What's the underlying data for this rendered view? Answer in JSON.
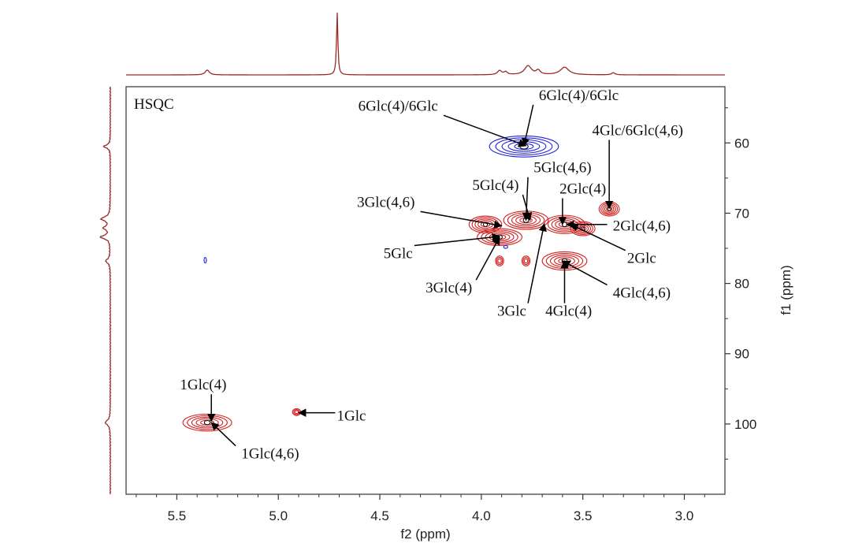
{
  "chart_data": {
    "type": "heatmap",
    "subtype": "2D NMR HSQC contour plot with 1D projections",
    "title": "HSQC",
    "xlabel": "f2 (ppm)",
    "ylabel": "f1 (ppm)",
    "xlim": [
      5.75,
      2.8
    ],
    "ylim": [
      52,
      110
    ],
    "xticks": [
      "5.5",
      "5.0",
      "4.5",
      "4.0",
      "3.5",
      "3.0"
    ],
    "xtick_values": [
      5.5,
      5.0,
      4.5,
      4.0,
      3.5,
      3.0
    ],
    "yticks": [
      "60",
      "70",
      "80",
      "90",
      "100"
    ],
    "ytick_values": [
      60,
      70,
      80,
      90,
      100
    ],
    "colors": {
      "positive": "#d42020",
      "negative": "#2222dd",
      "projection": "#9b2a2a",
      "core": "#111111"
    },
    "peaks": [
      {
        "name": "6Glc-CH2",
        "x": 3.79,
        "y": 60.5,
        "rx": 0.17,
        "ry": 1.5,
        "phase": "negative"
      },
      {
        "name": "3Glc(4,6)/5Glc(4)",
        "x": 3.78,
        "y": 71.0,
        "rx": 0.11,
        "ry": 1.3,
        "phase": "positive"
      },
      {
        "name": "2Glc(4)",
        "x": 3.59,
        "y": 71.6,
        "rx": 0.1,
        "ry": 1.3,
        "phase": "positive"
      },
      {
        "name": "right shoulder",
        "x": 3.5,
        "y": 72.2,
        "rx": 0.06,
        "ry": 1.0,
        "phase": "positive"
      },
      {
        "name": "left cluster",
        "x": 3.98,
        "y": 71.6,
        "rx": 0.08,
        "ry": 1.2,
        "phase": "positive"
      },
      {
        "name": "3Glc(4)",
        "x": 3.91,
        "y": 73.4,
        "rx": 0.11,
        "ry": 1.2,
        "phase": "positive"
      },
      {
        "name": "4Glc/6Glc(4,6)",
        "x": 3.37,
        "y": 69.4,
        "rx": 0.05,
        "ry": 1.0,
        "phase": "positive"
      },
      {
        "name": "4Glc(4)",
        "x": 3.59,
        "y": 76.8,
        "rx": 0.11,
        "ry": 1.3,
        "phase": "positive"
      },
      {
        "name": "small",
        "x": 3.91,
        "y": 76.8,
        "rx": 0.02,
        "ry": 0.7,
        "phase": "positive"
      },
      {
        "name": "small",
        "x": 3.78,
        "y": 76.8,
        "rx": 0.02,
        "ry": 0.7,
        "phase": "positive"
      },
      {
        "name": "1Glc(4)",
        "x": 5.35,
        "y": 99.8,
        "rx": 0.12,
        "ry": 1.2,
        "phase": "positive"
      },
      {
        "name": "1Glc",
        "x": 4.91,
        "y": 98.3,
        "rx": 0.02,
        "ry": 0.5,
        "phase": "positive"
      },
      {
        "name": "blue dot",
        "x": 5.36,
        "y": 76.7,
        "rx": 0.005,
        "ry": 0.4,
        "phase": "negative"
      },
      {
        "name": "blue dot 2",
        "x": 3.88,
        "y": 74.8,
        "rx": 0.01,
        "ry": 0.2,
        "phase": "negative"
      }
    ],
    "annotations": [
      {
        "text": "6Glc(4)/6Glc",
        "tx": 4.41,
        "ty": 55.4,
        "ax": 3.78,
        "ay": 60.4
      },
      {
        "text": "6Glc(4)/6Glc",
        "tx": 3.52,
        "ty": 53.9,
        "ax": 3.79,
        "ay": 60.4
      },
      {
        "text": "4Glc/6Glc(4,6)",
        "tx": 3.23,
        "ty": 58.9,
        "ax": 3.37,
        "ay": 69.3
      },
      {
        "text": "5Glc(4,6)",
        "tx": 3.6,
        "ty": 64.2,
        "ax": 3.78,
        "ay": 71.0
      },
      {
        "text": "5Glc(4)",
        "tx": 3.93,
        "ty": 66.7,
        "ax": 3.76,
        "ay": 71.0
      },
      {
        "text": "2Glc(4)",
        "tx": 3.5,
        "ty": 67.2,
        "ax": 3.6,
        "ay": 71.6
      },
      {
        "text": "3Glc(4,6)",
        "tx": 4.47,
        "ty": 69.1,
        "ax": 3.9,
        "ay": 71.8
      },
      {
        "text": "2Glc(4,6)",
        "tx": 3.21,
        "ty": 72.5,
        "ax": 3.58,
        "ay": 71.6
      },
      {
        "text": "5Glc",
        "tx": 4.41,
        "ty": 76.4,
        "ax": 3.91,
        "ay": 73.3
      },
      {
        "text": "2Glc",
        "tx": 3.21,
        "ty": 77.1,
        "ax": 3.56,
        "ay": 71.6
      },
      {
        "text": "3Glc(4)",
        "tx": 4.16,
        "ty": 81.3,
        "ax": 3.91,
        "ay": 73.4
      },
      {
        "text": "4Glc(4,6)",
        "tx": 3.21,
        "ty": 82.0,
        "ax": 3.6,
        "ay": 76.8
      },
      {
        "text": "3Glc",
        "tx": 3.85,
        "ty": 84.6,
        "ax": 3.69,
        "ay": 71.5
      },
      {
        "text": "4Glc(4)",
        "tx": 3.57,
        "ty": 84.6,
        "ax": 3.59,
        "ay": 76.8
      },
      {
        "text": "1Glc(4)",
        "tx": 5.37,
        "ty": 95.1,
        "ax": 5.33,
        "ay": 99.6
      },
      {
        "text": "1Glc",
        "tx": 4.64,
        "ty": 99.5,
        "ax": 4.9,
        "ay": 98.4
      },
      {
        "text": "1Glc(4,6)",
        "tx": 5.04,
        "ty": 104.9,
        "ax": 5.33,
        "ay": 99.8
      }
    ],
    "proj_f2": [
      {
        "x": 5.35,
        "h": 0.07,
        "w": 0.012
      },
      {
        "x": 4.71,
        "h": 0.9,
        "w": 0.004
      },
      {
        "x": 3.91,
        "h": 0.06,
        "w": 0.012
      },
      {
        "x": 3.88,
        "h": 0.04,
        "w": 0.01
      },
      {
        "x": 3.77,
        "h": 0.13,
        "w": 0.02
      },
      {
        "x": 3.72,
        "h": 0.06,
        "w": 0.012
      },
      {
        "x": 3.59,
        "h": 0.11,
        "w": 0.025
      },
      {
        "x": 3.35,
        "h": 0.03,
        "w": 0.01
      }
    ],
    "proj_f1": [
      {
        "y": 60.5,
        "h": 0.27,
        "w": 0.25
      },
      {
        "y": 70.8,
        "h": 0.35,
        "w": 0.35
      },
      {
        "y": 72.1,
        "h": 0.25,
        "w": 0.3
      },
      {
        "y": 73.4,
        "h": 0.38,
        "w": 0.3
      },
      {
        "y": 76.8,
        "h": 0.18,
        "w": 0.35
      },
      {
        "y": 99.8,
        "h": 0.2,
        "w": 0.4
      }
    ]
  }
}
